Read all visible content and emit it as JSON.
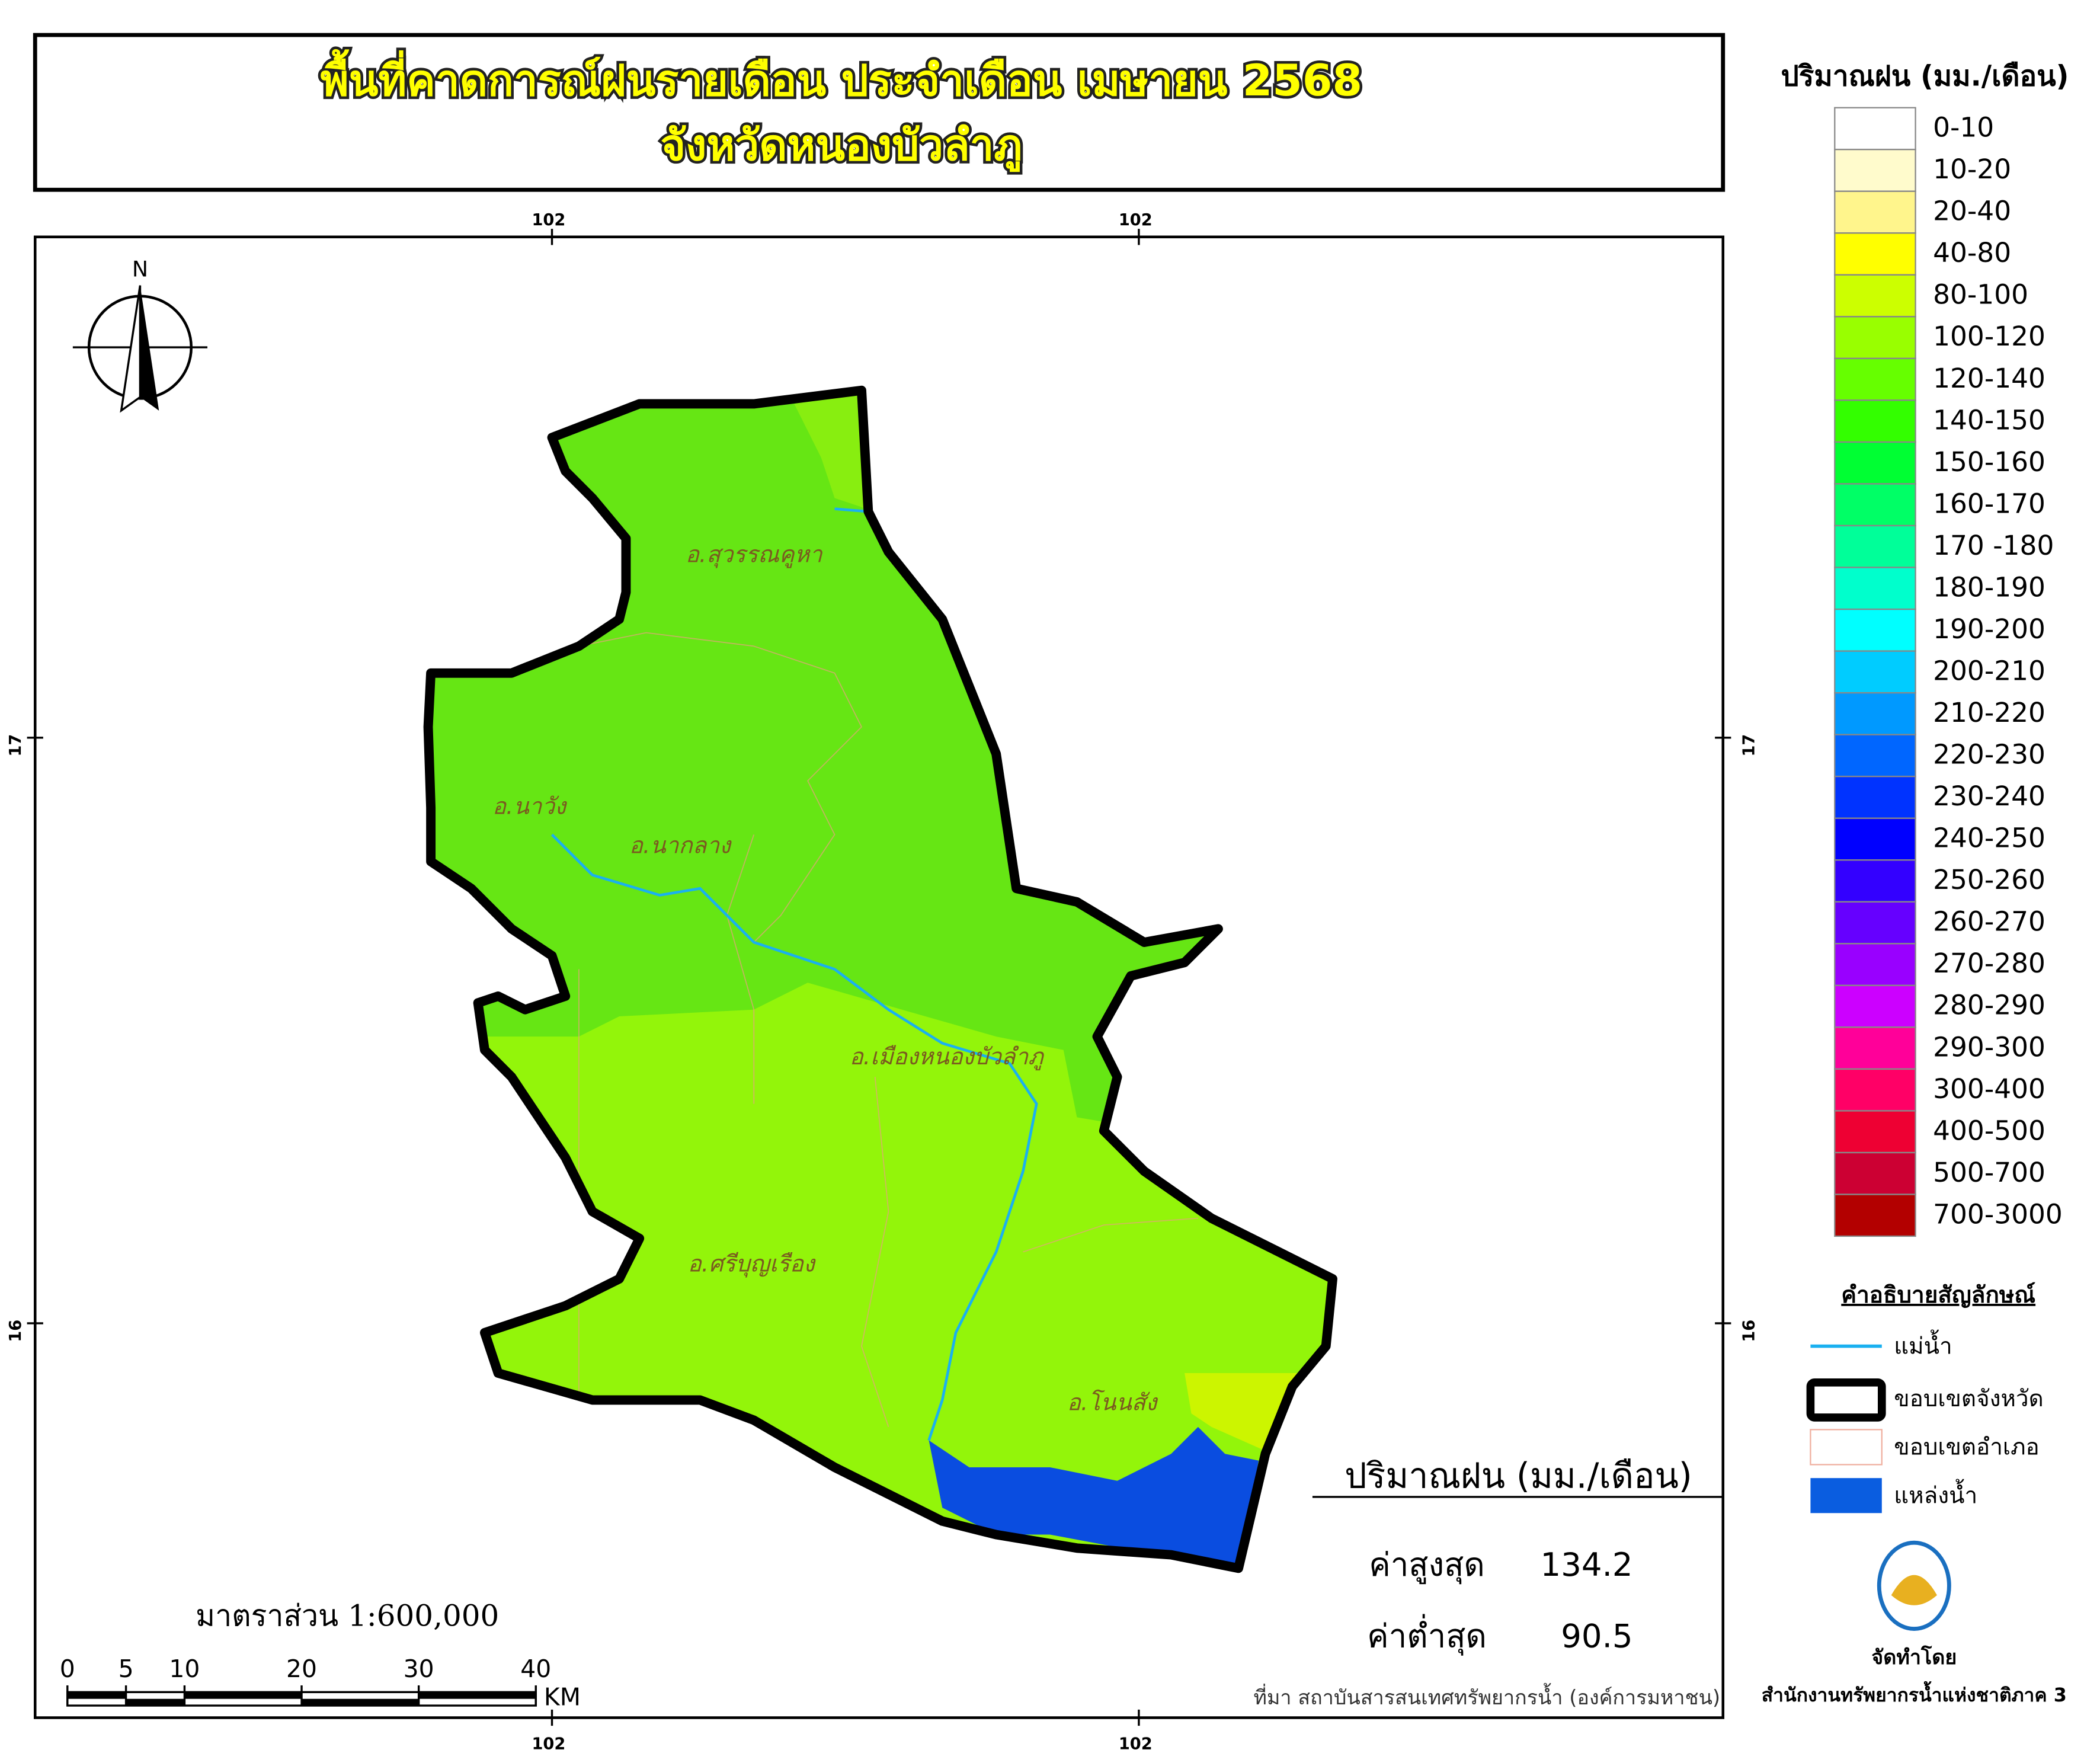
{
  "header": {
    "title_line1": "พื้นที่คาดการณ์ฝนรายเดือน ประจำเดือน เมษายน 2568",
    "title_line2": "จังหวัดหนองบัวลำภู"
  },
  "graticule": {
    "lon_labels": [
      "102",
      "102"
    ],
    "lat_labels": [
      "17",
      "16"
    ]
  },
  "map": {
    "north_label": "N",
    "districts": [
      "อ.สุวรรณคูหา",
      "อ.นาวัง",
      "อ.นากลาง",
      "อ.เมืองหนองบัวลำภู",
      "อ.ศรีบุญเรือง",
      "อ.โนนสัง"
    ],
    "scale_text": "มาตราส่วน 1:600,000",
    "scale_ticks": [
      0,
      5,
      10,
      20,
      30,
      40
    ],
    "scale_unit": "KM"
  },
  "legend": {
    "title": "ปริมาณฝน (มม./เดือน)",
    "items": [
      {
        "label": "0-10",
        "color": "#ffffff"
      },
      {
        "label": "10-20",
        "color": "#fffbcc"
      },
      {
        "label": "20-40",
        "color": "#fff58c"
      },
      {
        "label": "40-80",
        "color": "#ffff00"
      },
      {
        "label": "80-100",
        "color": "#ccff00"
      },
      {
        "label": "100-120",
        "color": "#99ff00"
      },
      {
        "label": "120-140",
        "color": "#66ff00"
      },
      {
        "label": "140-150",
        "color": "#33ff00"
      },
      {
        "label": "150-160",
        "color": "#00ff33"
      },
      {
        "label": "160-170",
        "color": "#00ff66"
      },
      {
        "label": "170 -180",
        "color": "#00ff99"
      },
      {
        "label": "180-190",
        "color": "#00ffcc"
      },
      {
        "label": "190-200",
        "color": "#00ffff"
      },
      {
        "label": "200-210",
        "color": "#00ccff"
      },
      {
        "label": "210-220",
        "color": "#0099ff"
      },
      {
        "label": "220-230",
        "color": "#0066ff"
      },
      {
        "label": "230-240",
        "color": "#0033ff"
      },
      {
        "label": "240-250",
        "color": "#0000ff"
      },
      {
        "label": "250-260",
        "color": "#3300ff"
      },
      {
        "label": "260-270",
        "color": "#6600ff"
      },
      {
        "label": "270-280",
        "color": "#9900ff"
      },
      {
        "label": "280-290",
        "color": "#cc00ff"
      },
      {
        "label": "290-300",
        "color": "#ff0099"
      },
      {
        "label": "300-400",
        "color": "#ff0066"
      },
      {
        "label": "400-500",
        "color": "#ee0033"
      },
      {
        "label": "500-700",
        "color": "#cc0033"
      },
      {
        "label": "700-3000",
        "color": "#b30000"
      }
    ]
  },
  "symbols": {
    "title": "คำอธิบายสัญลักษณ์",
    "items": [
      "แม่น้ำ",
      "ขอบเขตจังหวัด",
      "ขอบเขตอำเภอ",
      "แหล่งน้ำ"
    ]
  },
  "statistics": {
    "title": "ปริมาณฝน (มม./เดือน)",
    "max_label": "ค่าสูงสุด",
    "max": 134.2,
    "min_label": "ค่าต่ำสุด",
    "min": 90.5
  },
  "footer": {
    "source": "ที่มา  สถาบันสารสนเทศทรัพยากรน้ำ (องค์การมหาชน)",
    "made_by": "จัดทำโดย",
    "agency": "สำนักงานทรัพยากรน้ำแห่งชาติภาค 3"
  }
}
